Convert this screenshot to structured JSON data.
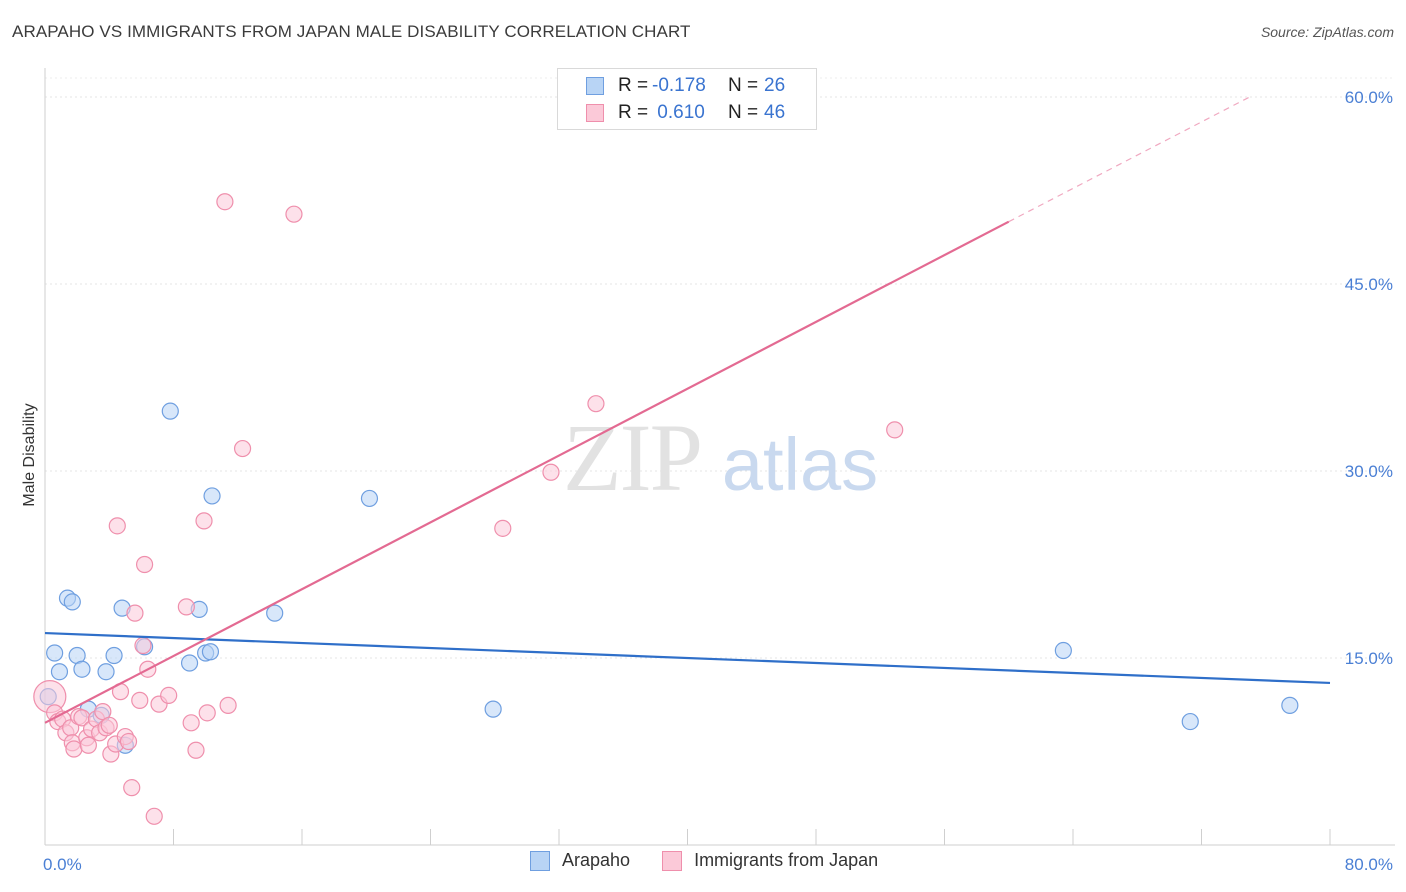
{
  "title": "ARAPAHO VS IMMIGRANTS FROM JAPAN MALE DISABILITY CORRELATION CHART",
  "source": "Source: ZipAtlas.com",
  "watermark": {
    "zip": "ZIP",
    "atlas": "atlas"
  },
  "legend": {
    "rows": [
      {
        "r_label": "R =",
        "r_value": "-0.178",
        "n_label": "N =",
        "n_value": "26",
        "fill": "#b8d4f5",
        "stroke": "#6f9fe0"
      },
      {
        "r_label": "R =",
        "r_value": " 0.610",
        "n_label": "N =",
        "n_value": "46",
        "fill": "#fbc9d8",
        "stroke": "#ef8fac"
      }
    ]
  },
  "bottom_legend": [
    {
      "label": "Arapaho",
      "fill": "#b8d4f5",
      "stroke": "#6f9fe0"
    },
    {
      "label": "Immigrants from Japan",
      "fill": "#fbc9d8",
      "stroke": "#ef8fac"
    }
  ],
  "chart_data": {
    "type": "scatter",
    "title": "ARAPAHO VS IMMIGRANTS FROM JAPAN MALE DISABILITY CORRELATION CHART",
    "xlabel": "",
    "ylabel": "Male Disability",
    "xlim": [
      0,
      80
    ],
    "ylim": [
      0,
      60
    ],
    "x_tick_labels": [
      {
        "value": 0,
        "label": "0.0%"
      },
      {
        "value": 80,
        "label": "80.0%"
      }
    ],
    "y_tick_labels": [
      {
        "value": 15,
        "label": "15.0%"
      },
      {
        "value": 30,
        "label": "30.0%"
      },
      {
        "value": 45,
        "label": "45.0%"
      },
      {
        "value": 60,
        "label": "60.0%"
      }
    ],
    "x_minor_ticks": [
      8,
      16,
      24,
      32,
      40,
      48,
      56,
      64,
      72,
      80
    ],
    "series": [
      {
        "name": "Arapaho",
        "color": "#6f9fe0",
        "fill": "#b8d4f5",
        "trend": {
          "x0": 0,
          "y0": 17.0,
          "x1": 80,
          "y1": 13.0,
          "color": "#2f6fc9"
        },
        "points": [
          [
            0.2,
            11.9
          ],
          [
            0.6,
            15.4
          ],
          [
            0.9,
            13.9
          ],
          [
            1.4,
            19.8
          ],
          [
            1.7,
            19.5
          ],
          [
            2.0,
            15.2
          ],
          [
            2.3,
            14.1
          ],
          [
            2.7,
            10.9
          ],
          [
            3.5,
            10.4
          ],
          [
            3.8,
            13.9
          ],
          [
            4.3,
            15.2
          ],
          [
            4.8,
            19.0
          ],
          [
            5.0,
            8.0
          ],
          [
            6.2,
            15.9
          ],
          [
            7.8,
            34.8
          ],
          [
            9.0,
            14.6
          ],
          [
            9.6,
            18.9
          ],
          [
            10.0,
            15.4
          ],
          [
            10.3,
            15.5
          ],
          [
            10.4,
            28.0
          ],
          [
            14.3,
            18.6
          ],
          [
            20.2,
            27.8
          ],
          [
            27.9,
            10.9
          ],
          [
            63.4,
            15.6
          ],
          [
            71.3,
            9.9
          ],
          [
            77.5,
            11.2
          ]
        ]
      },
      {
        "name": "Immigrants from Japan",
        "color": "#ef8fac",
        "fill": "#fbc9d8",
        "trend": {
          "x0": 0,
          "y0": 9.8,
          "x1": 60,
          "y1": 50.0,
          "color": "#e36a92"
        },
        "trend_dashed": {
          "x0": 60,
          "y0": 50.0,
          "x1": 75,
          "y1": 60.0
        },
        "points": [
          [
            0.3,
            11.9
          ],
          [
            0.6,
            10.6
          ],
          [
            0.8,
            9.9
          ],
          [
            1.1,
            10.1
          ],
          [
            1.3,
            9.0
          ],
          [
            1.6,
            9.4
          ],
          [
            1.7,
            8.2
          ],
          [
            1.8,
            7.7
          ],
          [
            2.1,
            10.3
          ],
          [
            2.3,
            10.2
          ],
          [
            2.6,
            8.6
          ],
          [
            2.7,
            8.0
          ],
          [
            2.9,
            9.3
          ],
          [
            3.2,
            10.1
          ],
          [
            3.4,
            9.0
          ],
          [
            3.6,
            10.7
          ],
          [
            3.8,
            9.4
          ],
          [
            4.0,
            9.6
          ],
          [
            4.1,
            7.3
          ],
          [
            4.4,
            8.1
          ],
          [
            4.5,
            25.6
          ],
          [
            4.7,
            12.3
          ],
          [
            5.0,
            8.7
          ],
          [
            5.2,
            8.3
          ],
          [
            5.4,
            4.6
          ],
          [
            5.6,
            18.6
          ],
          [
            5.9,
            11.6
          ],
          [
            6.1,
            16.0
          ],
          [
            6.2,
            22.5
          ],
          [
            6.4,
            14.1
          ],
          [
            6.8,
            2.3
          ],
          [
            7.1,
            11.3
          ],
          [
            7.7,
            12.0
          ],
          [
            8.8,
            19.1
          ],
          [
            9.1,
            9.8
          ],
          [
            9.4,
            7.6
          ],
          [
            9.9,
            26.0
          ],
          [
            10.1,
            10.6
          ],
          [
            11.2,
            51.6
          ],
          [
            11.4,
            11.2
          ],
          [
            12.3,
            31.8
          ],
          [
            15.5,
            50.6
          ],
          [
            28.5,
            25.4
          ],
          [
            31.5,
            29.9
          ],
          [
            34.3,
            35.4
          ],
          [
            52.9,
            33.3
          ]
        ]
      }
    ]
  }
}
